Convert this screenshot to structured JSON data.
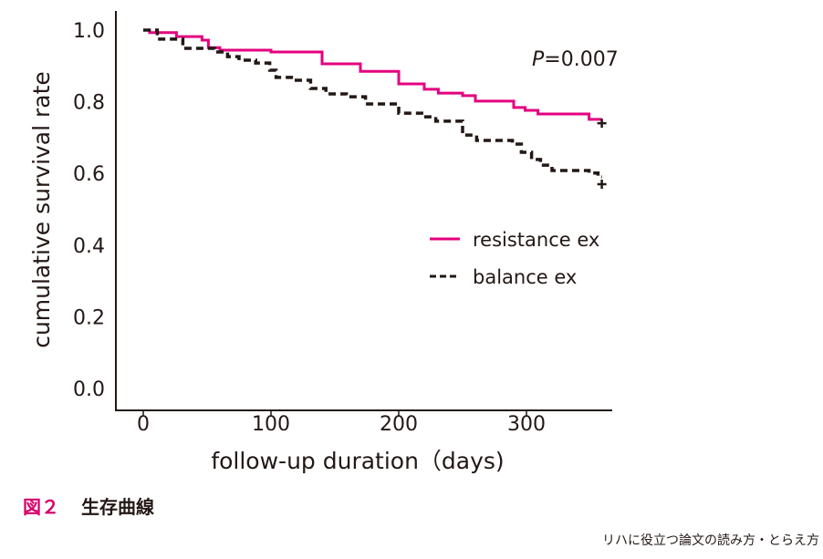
{
  "chart_data": {
    "type": "line",
    "subtype": "kaplan-meier",
    "xlabel": "follow-up duration（days)",
    "ylabel": "cumulative survival rate",
    "xlim": [
      -21,
      366
    ],
    "ylim": [
      0,
      1.0
    ],
    "xticks": [
      0,
      100,
      200,
      300
    ],
    "yticks": [
      "0.0",
      "0.2",
      "0.4",
      "0.6",
      "0.8",
      "1.0"
    ],
    "annotation": {
      "italic": "P",
      "text": "=0.007"
    },
    "legend_position": "center-right",
    "series": [
      {
        "name": "resistance ex",
        "color": "#e4007f",
        "style": "solid",
        "steps": [
          [
            0,
            1.0
          ],
          [
            5,
            0.993
          ],
          [
            26,
            0.982
          ],
          [
            46,
            0.972
          ],
          [
            51,
            0.951
          ],
          [
            60,
            0.944
          ],
          [
            100,
            0.939
          ],
          [
            140,
            0.906
          ],
          [
            170,
            0.885
          ],
          [
            200,
            0.85
          ],
          [
            220,
            0.835
          ],
          [
            231,
            0.824
          ],
          [
            250,
            0.817
          ],
          [
            260,
            0.802
          ],
          [
            290,
            0.784
          ],
          [
            299,
            0.776
          ],
          [
            309,
            0.766
          ],
          [
            349,
            0.751
          ]
        ],
        "end": 359,
        "censor": [
          359,
          0.74
        ]
      },
      {
        "name": "balance ex",
        "color": "#231815",
        "style": "dashed",
        "steps": [
          [
            0,
            1.0
          ],
          [
            11,
            0.975
          ],
          [
            31,
            0.949
          ],
          [
            56,
            0.939
          ],
          [
            66,
            0.926
          ],
          [
            75,
            0.916
          ],
          [
            88,
            0.908
          ],
          [
            99,
            0.888
          ],
          [
            104,
            0.868
          ],
          [
            116,
            0.86
          ],
          [
            131,
            0.837
          ],
          [
            143,
            0.822
          ],
          [
            159,
            0.814
          ],
          [
            174,
            0.794
          ],
          [
            200,
            0.768
          ],
          [
            218,
            0.758
          ],
          [
            229,
            0.746
          ],
          [
            250,
            0.707
          ],
          [
            261,
            0.692
          ],
          [
            289,
            0.682
          ],
          [
            296,
            0.659
          ],
          [
            304,
            0.639
          ],
          [
            311,
            0.623
          ],
          [
            320,
            0.608
          ],
          [
            349,
            0.601
          ],
          [
            356,
            0.59
          ]
        ],
        "end": 359,
        "censor": [
          359,
          0.57
        ]
      }
    ]
  },
  "caption": {
    "figure_number": "図２",
    "title": "生存曲線"
  },
  "footer": "リハに役立つ論文の読み方・とらえ方"
}
